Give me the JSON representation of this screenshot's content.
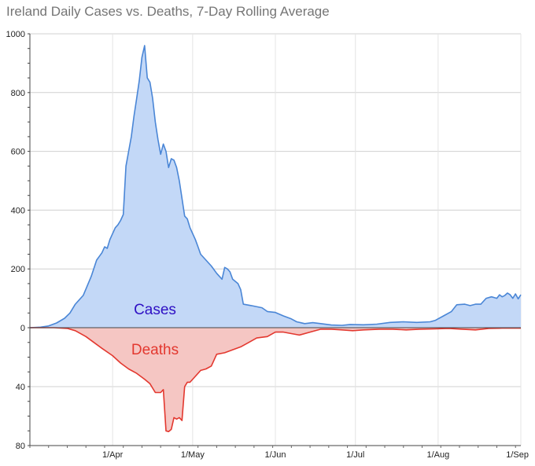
{
  "chart_data": {
    "type": "area",
    "title": "Ireland Daily Cases vs. Deaths, 7-Day Rolling Average",
    "xlabel": "",
    "ylabel": "",
    "x_domain": [
      "2020-03-01",
      "2020-09-01"
    ],
    "x_ticks": [
      {
        "date": "2020-04-01",
        "label": "1/Apr"
      },
      {
        "date": "2020-05-01",
        "label": "1/May"
      },
      {
        "date": "2020-06-01",
        "label": "1/Jun"
      },
      {
        "date": "2020-07-01",
        "label": "1/Jul"
      },
      {
        "date": "2020-08-01",
        "label": "1/Aug"
      },
      {
        "date": "2020-09-01",
        "label": "1/Sep"
      }
    ],
    "y_upper": {
      "range": [
        0,
        1000
      ],
      "ticks": [
        0,
        200,
        400,
        600,
        800,
        1000
      ],
      "tick_labels": [
        "0",
        "200",
        "400",
        "600",
        "800",
        "1000"
      ]
    },
    "y_lower": {
      "range": [
        0,
        80
      ],
      "ticks": [
        40,
        80
      ],
      "tick_labels": [
        "40",
        "80"
      ]
    },
    "grid": true,
    "series": [
      {
        "name": "Cases",
        "label_position": "upper-left",
        "direction": "up",
        "color": "#4a86d6",
        "fill": "#c3d8f7",
        "label_color": "#2f10c4",
        "points": [
          [
            "2020-03-01",
            0
          ],
          [
            "2020-03-05",
            2
          ],
          [
            "2020-03-08",
            6
          ],
          [
            "2020-03-11",
            16
          ],
          [
            "2020-03-14",
            32
          ],
          [
            "2020-03-16",
            50
          ],
          [
            "2020-03-18",
            80
          ],
          [
            "2020-03-21",
            110
          ],
          [
            "2020-03-24",
            175
          ],
          [
            "2020-03-26",
            230
          ],
          [
            "2020-03-28",
            255
          ],
          [
            "2020-03-29",
            275
          ],
          [
            "2020-03-30",
            270
          ],
          [
            "2020-03-31",
            300
          ],
          [
            "2020-04-01",
            320
          ],
          [
            "2020-04-02",
            340
          ],
          [
            "2020-04-03",
            350
          ],
          [
            "2020-04-04",
            365
          ],
          [
            "2020-04-05",
            385
          ],
          [
            "2020-04-06",
            550
          ],
          [
            "2020-04-07",
            600
          ],
          [
            "2020-04-08",
            650
          ],
          [
            "2020-04-09",
            720
          ],
          [
            "2020-04-10",
            780
          ],
          [
            "2020-04-11",
            840
          ],
          [
            "2020-04-12",
            920
          ],
          [
            "2020-04-13",
            960
          ],
          [
            "2020-04-14",
            850
          ],
          [
            "2020-04-15",
            835
          ],
          [
            "2020-04-16",
            780
          ],
          [
            "2020-04-17",
            700
          ],
          [
            "2020-04-18",
            640
          ],
          [
            "2020-04-19",
            590
          ],
          [
            "2020-04-20",
            625
          ],
          [
            "2020-04-21",
            600
          ],
          [
            "2020-04-22",
            545
          ],
          [
            "2020-04-23",
            575
          ],
          [
            "2020-04-24",
            570
          ],
          [
            "2020-04-25",
            545
          ],
          [
            "2020-04-26",
            500
          ],
          [
            "2020-04-27",
            440
          ],
          [
            "2020-04-28",
            380
          ],
          [
            "2020-04-29",
            370
          ],
          [
            "2020-04-30",
            340
          ],
          [
            "2020-05-01",
            320
          ],
          [
            "2020-05-02",
            300
          ],
          [
            "2020-05-03",
            275
          ],
          [
            "2020-05-04",
            250
          ],
          [
            "2020-05-06",
            230
          ],
          [
            "2020-05-08",
            210
          ],
          [
            "2020-05-10",
            185
          ],
          [
            "2020-05-12",
            165
          ],
          [
            "2020-05-13",
            205
          ],
          [
            "2020-05-14",
            200
          ],
          [
            "2020-05-15",
            190
          ],
          [
            "2020-05-16",
            165
          ],
          [
            "2020-05-18",
            150
          ],
          [
            "2020-05-19",
            130
          ],
          [
            "2020-05-20",
            80
          ],
          [
            "2020-05-23",
            75
          ],
          [
            "2020-05-27",
            68
          ],
          [
            "2020-05-29",
            55
          ],
          [
            "2020-06-01",
            52
          ],
          [
            "2020-06-04",
            40
          ],
          [
            "2020-06-07",
            30
          ],
          [
            "2020-06-09",
            20
          ],
          [
            "2020-06-12",
            14
          ],
          [
            "2020-06-15",
            17
          ],
          [
            "2020-06-18",
            14
          ],
          [
            "2020-06-22",
            9
          ],
          [
            "2020-06-26",
            8
          ],
          [
            "2020-06-29",
            11
          ],
          [
            "2020-07-04",
            10
          ],
          [
            "2020-07-09",
            12
          ],
          [
            "2020-07-14",
            18
          ],
          [
            "2020-07-19",
            20
          ],
          [
            "2020-07-24",
            18
          ],
          [
            "2020-07-29",
            20
          ],
          [
            "2020-07-31",
            25
          ],
          [
            "2020-08-03",
            40
          ],
          [
            "2020-08-06",
            55
          ],
          [
            "2020-08-08",
            78
          ],
          [
            "2020-08-11",
            80
          ],
          [
            "2020-08-13",
            75
          ],
          [
            "2020-08-15",
            80
          ],
          [
            "2020-08-17",
            80
          ],
          [
            "2020-08-19",
            100
          ],
          [
            "2020-08-21",
            105
          ],
          [
            "2020-08-23",
            100
          ],
          [
            "2020-08-24",
            112
          ],
          [
            "2020-08-25",
            105
          ],
          [
            "2020-08-26",
            110
          ],
          [
            "2020-08-27",
            118
          ],
          [
            "2020-08-28",
            112
          ],
          [
            "2020-08-29",
            100
          ],
          [
            "2020-08-30",
            115
          ],
          [
            "2020-08-31",
            98
          ],
          [
            "2020-09-01",
            112
          ]
        ]
      },
      {
        "name": "Deaths",
        "label_position": "lower-left",
        "direction": "down",
        "color": "#e3382f",
        "fill": "#f5c6c3",
        "label_color": "#e3382f",
        "points": [
          [
            "2020-03-01",
            0
          ],
          [
            "2020-03-10",
            0
          ],
          [
            "2020-03-15",
            0.5
          ],
          [
            "2020-03-18",
            2
          ],
          [
            "2020-03-22",
            6
          ],
          [
            "2020-03-25",
            10
          ],
          [
            "2020-03-28",
            14
          ],
          [
            "2020-04-01",
            19
          ],
          [
            "2020-04-04",
            24
          ],
          [
            "2020-04-07",
            28
          ],
          [
            "2020-04-10",
            31
          ],
          [
            "2020-04-13",
            35
          ],
          [
            "2020-04-15",
            38
          ],
          [
            "2020-04-17",
            44
          ],
          [
            "2020-04-19",
            44
          ],
          [
            "2020-04-20",
            42
          ],
          [
            "2020-04-21",
            70
          ],
          [
            "2020-04-22",
            70.5
          ],
          [
            "2020-04-23",
            69
          ],
          [
            "2020-04-24",
            61
          ],
          [
            "2020-04-25",
            62
          ],
          [
            "2020-04-26",
            61
          ],
          [
            "2020-04-27",
            63
          ],
          [
            "2020-04-28",
            40
          ],
          [
            "2020-04-29",
            37
          ],
          [
            "2020-04-30",
            37
          ],
          [
            "2020-05-02",
            33
          ],
          [
            "2020-05-04",
            29
          ],
          [
            "2020-05-06",
            28
          ],
          [
            "2020-05-08",
            26
          ],
          [
            "2020-05-10",
            18
          ],
          [
            "2020-05-13",
            17
          ],
          [
            "2020-05-16",
            15
          ],
          [
            "2020-05-19",
            13
          ],
          [
            "2020-05-22",
            10
          ],
          [
            "2020-05-25",
            7
          ],
          [
            "2020-05-29",
            6
          ],
          [
            "2020-06-01",
            3
          ],
          [
            "2020-06-04",
            3
          ],
          [
            "2020-06-07",
            4
          ],
          [
            "2020-06-10",
            5
          ],
          [
            "2020-06-14",
            3
          ],
          [
            "2020-06-18",
            1
          ],
          [
            "2020-06-22",
            1
          ],
          [
            "2020-06-26",
            1.5
          ],
          [
            "2020-06-30",
            2
          ],
          [
            "2020-07-04",
            1.5
          ],
          [
            "2020-07-10",
            1
          ],
          [
            "2020-07-15",
            1
          ],
          [
            "2020-07-20",
            1.5
          ],
          [
            "2020-07-25",
            1
          ],
          [
            "2020-07-31",
            0.8
          ],
          [
            "2020-08-05",
            0.5
          ],
          [
            "2020-08-10",
            1
          ],
          [
            "2020-08-15",
            1.5
          ],
          [
            "2020-08-20",
            0.5
          ],
          [
            "2020-08-25",
            0.3
          ],
          [
            "2020-09-01",
            0.3
          ]
        ]
      }
    ]
  }
}
